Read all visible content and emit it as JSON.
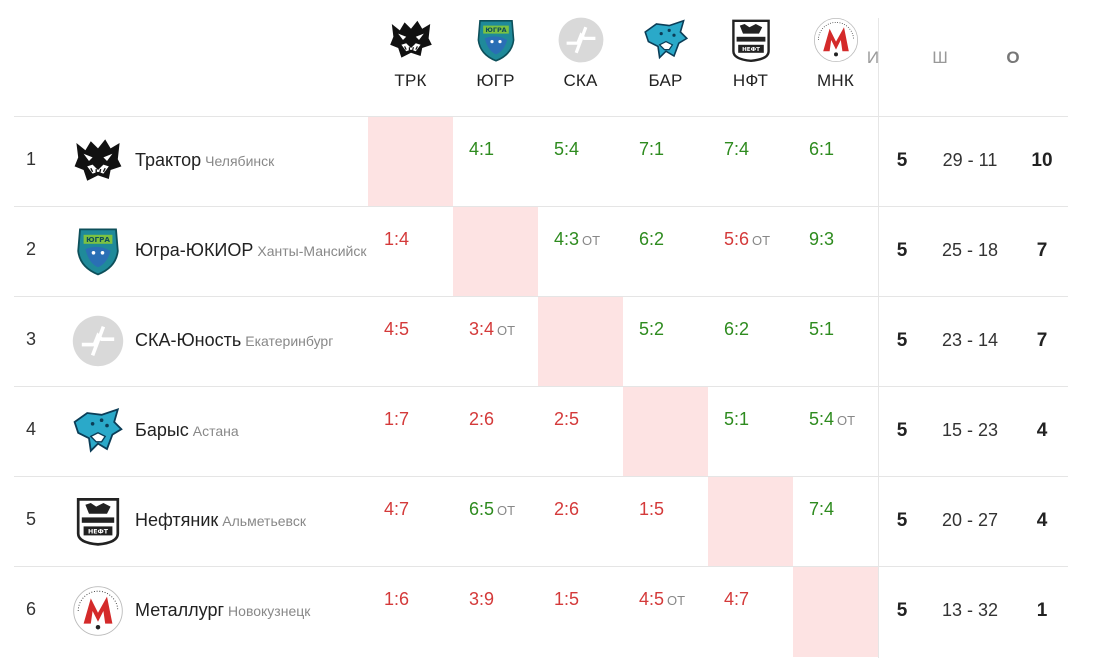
{
  "header": {
    "teams": [
      {
        "abbr": "ТРК",
        "icon": "tiger-logo-icon"
      },
      {
        "abbr": "ЮГР",
        "icon": "ugra-logo-icon"
      },
      {
        "abbr": "СКА",
        "icon": "ska-placeholder-logo-icon"
      },
      {
        "abbr": "БАР",
        "icon": "barys-logo-icon"
      },
      {
        "abbr": "НФТ",
        "icon": "neftyanik-logo-icon"
      },
      {
        "abbr": "МНК",
        "icon": "metallurg-logo-icon"
      }
    ],
    "stats": {
      "games": "И",
      "goals": "Ш",
      "points": "О"
    }
  },
  "rows": [
    {
      "pos": "1",
      "name": "Трактор",
      "city": "Челябинск",
      "icon": "tiger-logo-icon",
      "results": [
        null,
        {
          "s": "4:1",
          "ot": "",
          "r": "win"
        },
        {
          "s": "5:4",
          "ot": "",
          "r": "win"
        },
        {
          "s": "7:1",
          "ot": "",
          "r": "win"
        },
        {
          "s": "7:4",
          "ot": "",
          "r": "win"
        },
        {
          "s": "6:1",
          "ot": "",
          "r": "win"
        }
      ],
      "games": "5",
      "goals": "29 - 11",
      "points": "10"
    },
    {
      "pos": "2",
      "name": "Югра-ЮКИОР",
      "city": "Ханты-Мансийск",
      "icon": "ugra-logo-icon",
      "results": [
        {
          "s": "1:4",
          "ot": "",
          "r": "loss"
        },
        null,
        {
          "s": "4:3",
          "ot": "ОТ",
          "r": "win"
        },
        {
          "s": "6:2",
          "ot": "",
          "r": "win"
        },
        {
          "s": "5:6",
          "ot": "ОТ",
          "r": "loss"
        },
        {
          "s": "9:3",
          "ot": "",
          "r": "win"
        }
      ],
      "games": "5",
      "goals": "25 - 18",
      "points": "7"
    },
    {
      "pos": "3",
      "name": "СКА-Юность",
      "city": "Екатеринбург",
      "icon": "ska-placeholder-logo-icon",
      "results": [
        {
          "s": "4:5",
          "ot": "",
          "r": "loss"
        },
        {
          "s": "3:4",
          "ot": "ОТ",
          "r": "loss"
        },
        null,
        {
          "s": "5:2",
          "ot": "",
          "r": "win"
        },
        {
          "s": "6:2",
          "ot": "",
          "r": "win"
        },
        {
          "s": "5:1",
          "ot": "",
          "r": "win"
        }
      ],
      "games": "5",
      "goals": "23 - 14",
      "points": "7"
    },
    {
      "pos": "4",
      "name": "Барыс",
      "city": "Астана",
      "icon": "barys-logo-icon",
      "results": [
        {
          "s": "1:7",
          "ot": "",
          "r": "loss"
        },
        {
          "s": "2:6",
          "ot": "",
          "r": "loss"
        },
        {
          "s": "2:5",
          "ot": "",
          "r": "loss"
        },
        null,
        {
          "s": "5:1",
          "ot": "",
          "r": "win"
        },
        {
          "s": "5:4",
          "ot": "ОТ",
          "r": "win"
        }
      ],
      "games": "5",
      "goals": "15 - 23",
      "points": "4"
    },
    {
      "pos": "5",
      "name": "Нефтяник",
      "city": "Альметьевск",
      "icon": "neftyanik-logo-icon",
      "results": [
        {
          "s": "4:7",
          "ot": "",
          "r": "loss"
        },
        {
          "s": "6:5",
          "ot": "ОТ",
          "r": "win"
        },
        {
          "s": "2:6",
          "ot": "",
          "r": "loss"
        },
        {
          "s": "1:5",
          "ot": "",
          "r": "loss"
        },
        null,
        {
          "s": "7:4",
          "ot": "",
          "r": "win"
        }
      ],
      "games": "5",
      "goals": "20 - 27",
      "points": "4"
    },
    {
      "pos": "6",
      "name": "Металлург",
      "city": "Новокузнецк",
      "icon": "metallurg-logo-icon",
      "results": [
        {
          "s": "1:6",
          "ot": "",
          "r": "loss"
        },
        {
          "s": "3:9",
          "ot": "",
          "r": "loss"
        },
        {
          "s": "1:5",
          "ot": "",
          "r": "loss"
        },
        {
          "s": "4:5",
          "ot": "ОТ",
          "r": "loss"
        },
        {
          "s": "4:7",
          "ot": "",
          "r": "loss"
        },
        null
      ],
      "games": "5",
      "goals": "13 - 32",
      "points": "1"
    }
  ],
  "colors": {
    "win": "#2e8b1f",
    "loss": "#d43a3a",
    "self_cell": "#fde3e3"
  }
}
